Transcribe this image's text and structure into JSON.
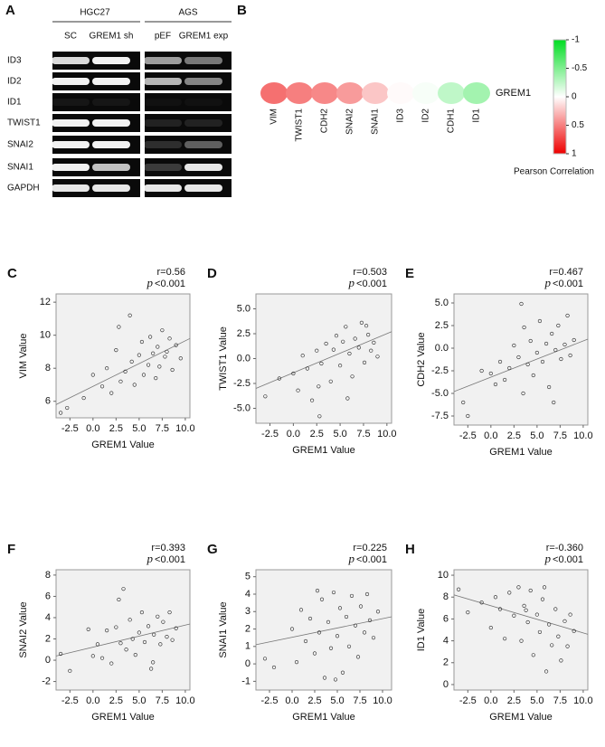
{
  "gel": {
    "label": "A",
    "groups": [
      "HGC27",
      "AGS"
    ],
    "lanes": [
      "SC",
      "GREM1 sh",
      "pEF",
      "GREM1 exp"
    ],
    "genes": [
      "ID3",
      "ID2",
      "ID1",
      "TWIST1",
      "SNAI2",
      "SNAI1",
      "GAPDH"
    ]
  },
  "chart_data": [
    {
      "type": "heatmap",
      "label": "B",
      "row": "GREM1",
      "categories": [
        "VIM",
        "TWIST1",
        "CDH2",
        "SNAI2",
        "SNAI1",
        "ID3",
        "ID2",
        "CDH1",
        "ID1"
      ],
      "values": [
        0.56,
        0.503,
        0.467,
        0.393,
        0.225,
        0.02,
        -0.03,
        -0.25,
        -0.36
      ],
      "clim": [
        -1,
        1
      ],
      "cticks": [
        -1,
        -0.5,
        0,
        0.5,
        1
      ],
      "colorbar_title": "Pearson Correlation",
      "colors": {
        "low": "#00dd22",
        "mid": "#ffffff",
        "high": "#ee0000"
      }
    },
    {
      "type": "scatter",
      "label": "C",
      "r_text": "r=0.56",
      "p_symbol": "p",
      "p_text": "<0.001",
      "xlabel": "GREM1 Value",
      "ylabel": "VIM Value",
      "xlim": [
        -4,
        10.5
      ],
      "ylim": [
        5,
        12.5
      ],
      "xticks": [
        -2.5,
        {
          "value": 0,
          "label": "0.0"
        },
        2.5,
        {
          "value": 5,
          "label": "5.0"
        },
        7.5,
        {
          "value": 10,
          "label": "10.0"
        }
      ],
      "yticks": [
        6,
        8,
        10,
        12
      ],
      "x": [
        -3.5,
        -2.8,
        -1,
        0,
        1,
        1.5,
        2,
        2.5,
        2.8,
        3,
        3.5,
        4,
        4.2,
        4.5,
        5,
        5.3,
        5.5,
        6,
        6.2,
        6.5,
        6.8,
        7,
        7.2,
        7.5,
        7.8,
        8,
        8.3,
        8.6,
        9,
        9.5
      ],
      "values": [
        5.3,
        5.6,
        6.2,
        7.6,
        6.9,
        8.0,
        6.5,
        9.1,
        10.5,
        7.2,
        7.8,
        11.2,
        8.4,
        7.0,
        8.8,
        9.6,
        7.6,
        8.2,
        9.9,
        8.9,
        7.4,
        9.3,
        8.1,
        10.3,
        8.7,
        9.0,
        9.8,
        7.9,
        9.4,
        8.6
      ],
      "fit_line": {
        "x": [
          -4,
          10.5
        ],
        "values": [
          5.8,
          9.8
        ]
      }
    },
    {
      "type": "scatter",
      "label": "D",
      "r_text": "r=0.503",
      "p_symbol": "p",
      "p_text": "<0.001",
      "xlabel": "GREM1 Value",
      "ylabel": "TWIST1 Value",
      "xlim": [
        -4,
        10.5
      ],
      "ylim": [
        -6.5,
        6.5
      ],
      "xticks": [
        -2.5,
        {
          "value": 0,
          "label": "0.0"
        },
        2.5,
        {
          "value": 5,
          "label": "5.0"
        },
        7.5,
        {
          "value": 10,
          "label": "10.0"
        }
      ],
      "yticks": [
        {
          "value": -5,
          "label": "-5.0"
        },
        -2.5,
        {
          "value": 0,
          "label": "0.0"
        },
        2.5,
        {
          "value": 5,
          "label": "5.0"
        }
      ],
      "x": [
        -3,
        -1.5,
        0,
        0.5,
        1,
        1.5,
        2,
        2.5,
        2.8,
        3,
        3.5,
        4,
        4.3,
        4.6,
        5,
        5.3,
        5.6,
        6,
        6.3,
        6.6,
        7,
        7.3,
        7.6,
        8,
        8.3,
        8.6,
        9,
        2.7,
        5.8,
        7.8
      ],
      "values": [
        -3.8,
        -2,
        -1.5,
        -3.2,
        0.3,
        -1,
        -4.2,
        0.8,
        -5.8,
        -0.5,
        1.5,
        -2.3,
        0.9,
        2.3,
        -0.7,
        1.7,
        3.2,
        0.5,
        -1.8,
        2,
        1.1,
        3.6,
        -0.4,
        2.4,
        0.8,
        1.6,
        0.2,
        -2.8,
        -4,
        3.3
      ],
      "fit_line": {
        "x": [
          -4,
          10.5
        ],
        "values": [
          -3,
          2.7
        ]
      }
    },
    {
      "type": "scatter",
      "label": "E",
      "r_text": "r=0.467",
      "p_symbol": "p",
      "p_text": "<0.001",
      "xlabel": "GREM1 Value",
      "ylabel": "CDH2 Value",
      "xlim": [
        -4,
        10.5
      ],
      "ylim": [
        -8.5,
        6
      ],
      "xticks": [
        -2.5,
        {
          "value": 0,
          "label": "0.0"
        },
        2.5,
        {
          "value": 5,
          "label": "5.0"
        },
        7.5,
        {
          "value": 10,
          "label": "10.0"
        }
      ],
      "yticks": [
        -7.5,
        {
          "value": -5,
          "label": "-5.0"
        },
        -2.5,
        {
          "value": 0,
          "label": "0.0"
        },
        2.5,
        {
          "value": 5,
          "label": "5.0"
        }
      ],
      "x": [
        -3,
        -2.5,
        -1,
        0,
        0.5,
        1,
        1.5,
        2,
        2.5,
        3,
        3.3,
        3.6,
        4,
        4.3,
        4.6,
        5,
        5.3,
        5.6,
        6,
        6.3,
        6.6,
        7,
        7.3,
        7.6,
        8,
        8.3,
        8.6,
        9,
        3.5,
        6.8
      ],
      "values": [
        -6,
        -7.5,
        -2.5,
        -2.8,
        -4,
        -1.5,
        -3.5,
        -2.2,
        0.3,
        -1,
        4.9,
        2.3,
        -1.8,
        0.8,
        -3,
        -0.5,
        3,
        -1.5,
        0.5,
        -4.3,
        1.6,
        -0.2,
        2.5,
        -1.2,
        0.4,
        3.6,
        -0.8,
        0.9,
        -5,
        -6
      ],
      "fit_line": {
        "x": [
          -4,
          10.5
        ],
        "values": [
          -4.8,
          1
        ]
      }
    },
    {
      "type": "scatter",
      "label": "F",
      "r_text": "r=0.393",
      "p_symbol": "p",
      "p_text": "<0.001",
      "xlabel": "GREM1 Value",
      "ylabel": "SNAI2 Value",
      "xlim": [
        -4,
        10.5
      ],
      "ylim": [
        -2.8,
        8.5
      ],
      "xticks": [
        -2.5,
        {
          "value": 0,
          "label": "0.0"
        },
        2.5,
        {
          "value": 5,
          "label": "5.0"
        },
        7.5,
        {
          "value": 10,
          "label": "10.0"
        }
      ],
      "yticks": [
        -2,
        0,
        2,
        4,
        6,
        8
      ],
      "x": [
        -3.5,
        -2.5,
        -0.5,
        0,
        0.5,
        1,
        1.5,
        2,
        2.5,
        3,
        3.3,
        3.6,
        4,
        4.3,
        4.6,
        5,
        5.3,
        5.6,
        6,
        6.3,
        6.6,
        7,
        7.3,
        7.6,
        8,
        8.3,
        8.6,
        9,
        2.8,
        6.5
      ],
      "values": [
        0.6,
        -1,
        2.9,
        0.4,
        1.5,
        0.2,
        2.8,
        -0.3,
        3.1,
        1.6,
        6.7,
        1,
        3.8,
        2,
        0.5,
        2.6,
        4.5,
        1.7,
        3.2,
        -0.8,
        2.4,
        4.1,
        1.5,
        3.6,
        2.2,
        4.5,
        1.9,
        3,
        5.7,
        -0.2
      ],
      "fit_line": {
        "x": [
          -4,
          10.5
        ],
        "values": [
          0.4,
          3.4
        ]
      }
    },
    {
      "type": "scatter",
      "label": "G",
      "r_text": "r=0.225",
      "p_symbol": "p",
      "p_text": "<0.001",
      "xlabel": "GREM1 Value",
      "ylabel": "SNAI1 Value",
      "xlim": [
        -4,
        11
      ],
      "ylim": [
        -1.5,
        5.4
      ],
      "xticks": [
        -2.5,
        {
          "value": 0,
          "label": "0.0"
        },
        2.5,
        {
          "value": 5,
          "label": "5.0"
        },
        7.5,
        {
          "value": 10,
          "label": "10.0"
        }
      ],
      "yticks": [
        -1,
        0,
        1,
        2,
        3,
        4,
        5
      ],
      "x": [
        -3,
        -2,
        0,
        0.5,
        1,
        1.5,
        2,
        2.5,
        2.8,
        3,
        3.3,
        3.6,
        4,
        4.3,
        4.6,
        5,
        5.3,
        5.6,
        6,
        6.3,
        6.6,
        7,
        7.3,
        7.6,
        8,
        8.3,
        8.6,
        9,
        9.5,
        4.8
      ],
      "values": [
        0.3,
        -0.2,
        2,
        0.1,
        3.1,
        1.3,
        2.6,
        0.6,
        4.2,
        1.8,
        3.7,
        -0.8,
        2.4,
        0.9,
        4.1,
        1.6,
        3.2,
        -0.5,
        2.7,
        1,
        3.9,
        2.2,
        0.4,
        3.3,
        1.8,
        4,
        2.5,
        1.5,
        3,
        -0.9
      ],
      "fit_line": {
        "x": [
          -4,
          11
        ],
        "values": [
          1.1,
          2.7
        ]
      }
    },
    {
      "type": "scatter",
      "label": "H",
      "r_text": "r=-0.360",
      "p_symbol": "p",
      "p_text": "<0.001",
      "xlabel": "GREM1 Value",
      "ylabel": "ID1 Value",
      "xlim": [
        -4,
        10.5
      ],
      "ylim": [
        -0.5,
        10.5
      ],
      "xticks": [
        -2.5,
        {
          "value": 0,
          "label": "0.0"
        },
        2.5,
        {
          "value": 5,
          "label": "5.0"
        },
        7.5,
        {
          "value": 10,
          "label": "10.0"
        }
      ],
      "yticks": [
        0,
        2,
        4,
        6,
        8,
        10
      ],
      "x": [
        -3.5,
        -2.5,
        -1,
        0,
        0.5,
        1,
        1.5,
        2,
        2.5,
        3,
        3.3,
        3.6,
        4,
        4.3,
        4.6,
        5,
        5.3,
        5.6,
        6,
        6.3,
        6.6,
        7,
        7.3,
        7.6,
        8,
        8.3,
        8.6,
        9,
        5.8,
        3.8
      ],
      "values": [
        8.7,
        6.6,
        7.5,
        5.2,
        8,
        6.9,
        4.2,
        8.4,
        6.3,
        8.9,
        4,
        7.2,
        5.7,
        8.6,
        2.7,
        6.4,
        4.8,
        7.8,
        1.2,
        5.5,
        3.6,
        6.9,
        4.4,
        2.2,
        5.8,
        3.5,
        6.4,
        4.9,
        8.9,
        6.8
      ],
      "fit_line": {
        "x": [
          -4,
          10.5
        ],
        "values": [
          8.2,
          4.6
        ]
      }
    }
  ]
}
